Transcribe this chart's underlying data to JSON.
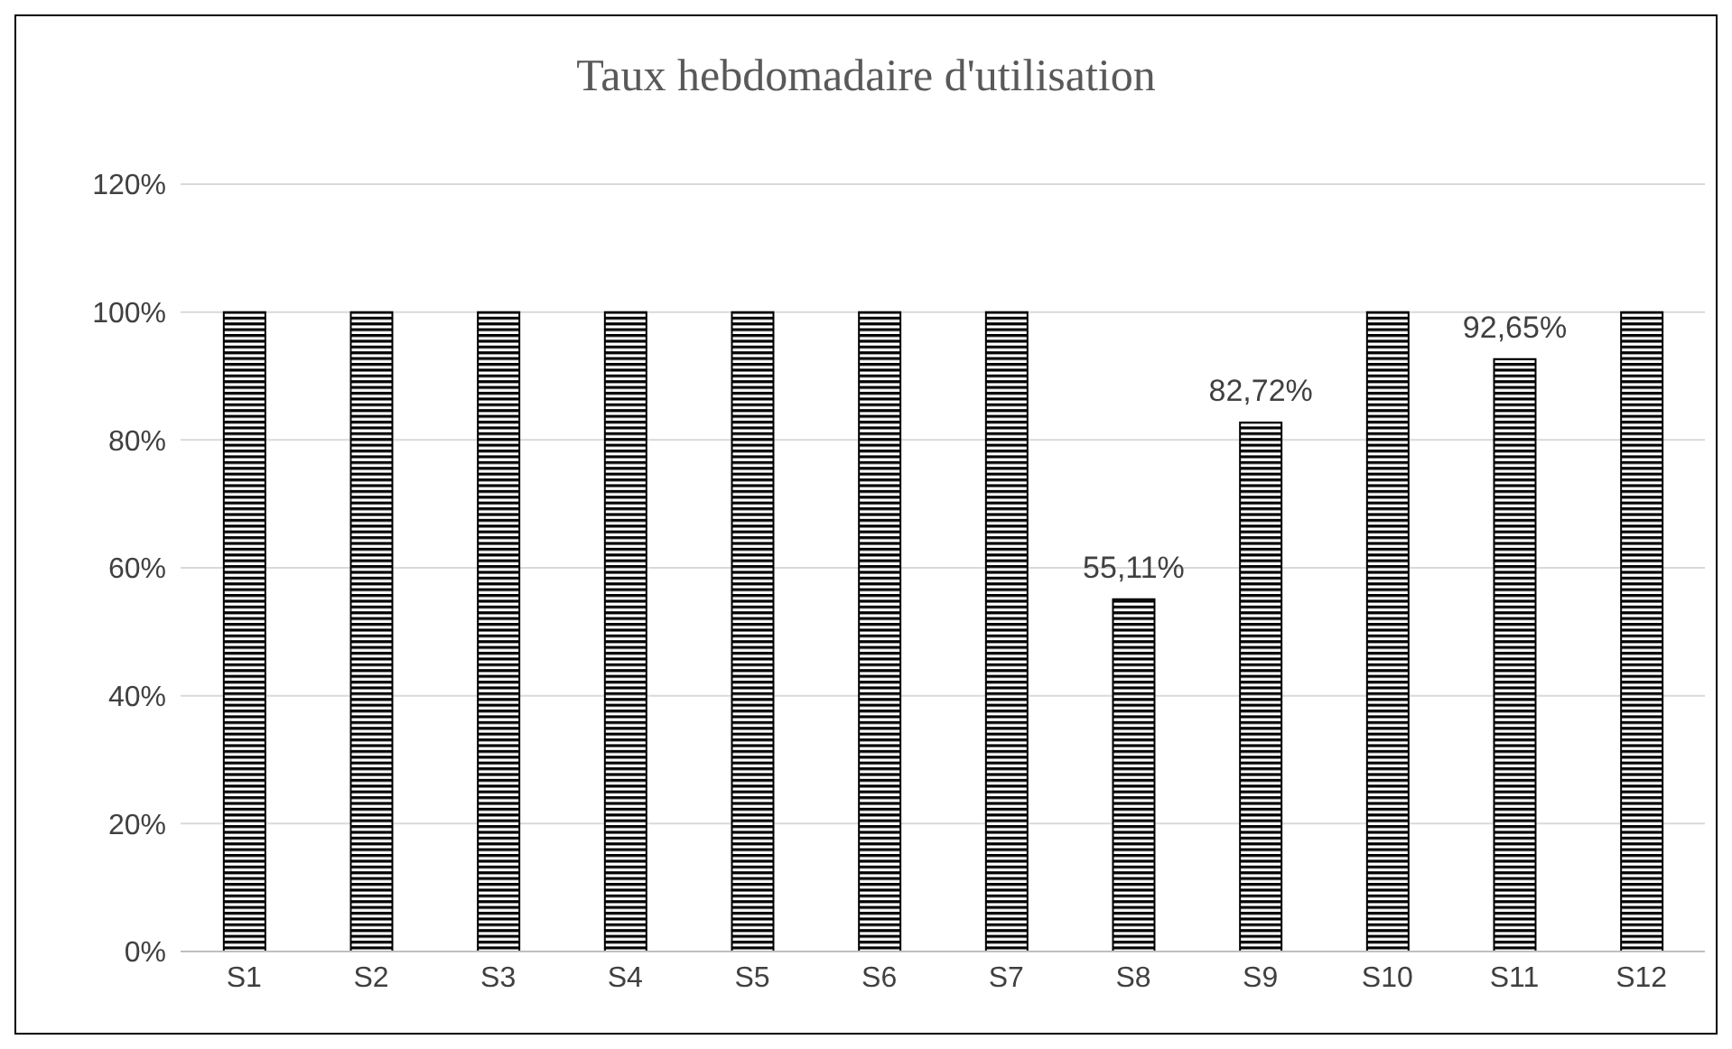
{
  "chart_data": {
    "type": "bar",
    "title": "Taux hebdomadaire d'utilisation",
    "categories": [
      "S1",
      "S2",
      "S3",
      "S4",
      "S5",
      "S6",
      "S7",
      "S8",
      "S9",
      "S10",
      "S11",
      "S12"
    ],
    "values": [
      100,
      100,
      100,
      100,
      100,
      100,
      100,
      55.11,
      82.72,
      100,
      92.65,
      100
    ],
    "value_labels": [
      null,
      null,
      null,
      null,
      null,
      null,
      null,
      "55,11%",
      "82,72%",
      null,
      "92,65%",
      null
    ],
    "color": "#000000",
    "ylim": [
      0,
      120
    ],
    "yticks": [
      {
        "value": 0,
        "label": "0%"
      },
      {
        "value": 20,
        "label": "20%"
      },
      {
        "value": 40,
        "label": "40%"
      },
      {
        "value": 60,
        "label": "60%"
      },
      {
        "value": 80,
        "label": "80%"
      },
      {
        "value": 100,
        "label": "100%"
      },
      {
        "value": 120,
        "label": "120%"
      }
    ],
    "grid": "y",
    "legend": false
  }
}
